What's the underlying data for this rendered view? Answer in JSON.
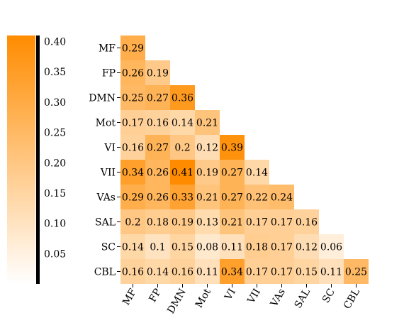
{
  "chart_data": {
    "type": "heatmap",
    "title": "",
    "xlabel": "",
    "ylabel": "",
    "labels": [
      "MF",
      "FP",
      "DMN",
      "Mot",
      "VI",
      "VII",
      "VAs",
      "SAL",
      "SC",
      "CBL"
    ],
    "matrix": [
      [
        0.29
      ],
      [
        0.26,
        0.19
      ],
      [
        0.25,
        0.27,
        0.36
      ],
      [
        0.17,
        0.16,
        0.14,
        0.21
      ],
      [
        0.16,
        0.27,
        0.2,
        0.12,
        0.39
      ],
      [
        0.34,
        0.26,
        0.41,
        0.19,
        0.27,
        0.14
      ],
      [
        0.29,
        0.26,
        0.33,
        0.21,
        0.27,
        0.22,
        0.24
      ],
      [
        0.2,
        0.18,
        0.19,
        0.13,
        0.21,
        0.17,
        0.17,
        0.16
      ],
      [
        0.14,
        0.1,
        0.15,
        0.08,
        0.11,
        0.18,
        0.17,
        0.12,
        0.06
      ],
      [
        0.16,
        0.14,
        0.16,
        0.11,
        0.34,
        0.17,
        0.17,
        0.15,
        0.11,
        0.25
      ]
    ],
    "value_labels": [
      [
        "0.29"
      ],
      [
        "0.26",
        "0.19"
      ],
      [
        "0.25",
        "0.27",
        "0.36"
      ],
      [
        "0.17",
        "0.16",
        "0.14",
        "0.21"
      ],
      [
        "0.16",
        "0.27",
        "0.2",
        "0.12",
        "0.39"
      ],
      [
        "0.34",
        "0.26",
        "0.41",
        "0.19",
        "0.27",
        "0.14"
      ],
      [
        "0.29",
        "0.26",
        "0.33",
        "0.21",
        "0.27",
        "0.22",
        "0.24"
      ],
      [
        "0.2",
        "0.18",
        "0.19",
        "0.13",
        "0.21",
        "0.17",
        "0.17",
        "0.16"
      ],
      [
        "0.14",
        "0.1",
        "0.15",
        "0.08",
        "0.11",
        "0.18",
        "0.17",
        "0.12",
        "0.06"
      ],
      [
        "0.16",
        "0.14",
        "0.16",
        "0.11",
        "0.34",
        "0.17",
        "0.17",
        "0.15",
        "0.11",
        "0.25"
      ]
    ],
    "value_range": [
      0.0,
      0.41
    ],
    "lower_triangle": true,
    "colormap": {
      "low": "#ffffff",
      "high": "#ff8c00"
    },
    "colorbar": {
      "position": "left",
      "ticks": [
        0.05,
        0.1,
        0.15,
        0.2,
        0.25,
        0.3,
        0.35,
        0.4
      ],
      "tick_labels": [
        "0.05",
        "0.10",
        "0.15",
        "0.20",
        "0.25",
        "0.30",
        "0.35",
        "0.40"
      ]
    }
  }
}
